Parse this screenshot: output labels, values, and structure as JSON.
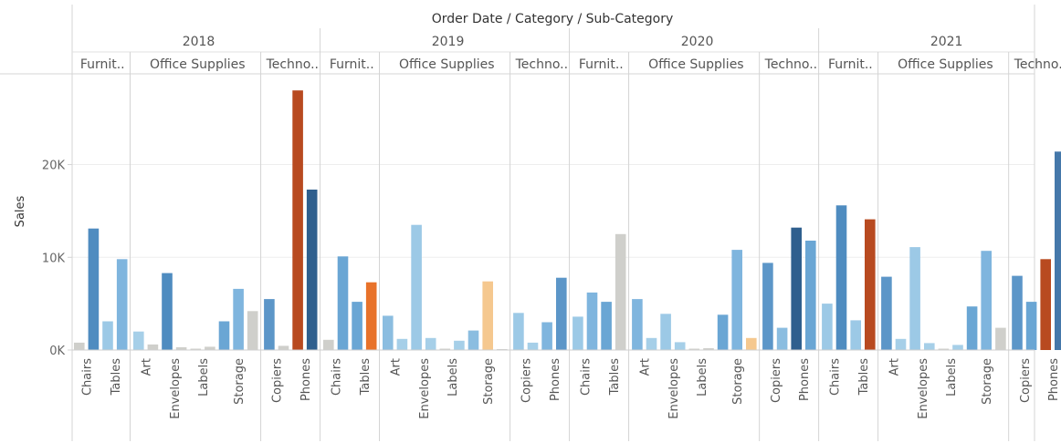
{
  "chart_data": {
    "type": "bar",
    "title": "Order Date / Category / Sub-Category",
    "ylabel": "Sales",
    "ylim": [
      0,
      29000
    ],
    "yticks": [
      0,
      10000,
      20000
    ],
    "ytick_labels": [
      "0K",
      "10K",
      "20K"
    ],
    "grid": "horizontal",
    "years": [
      {
        "label": "2018",
        "groups": [
          {
            "label": "Furnit..",
            "bars": [
              {
                "label": "Chairs",
                "value": 800,
                "color": "#cfcfcb"
              },
              {
                "label": "Chairs",
                "value": 13100,
                "color": "#4f8cc0"
              },
              {
                "label": "Tables",
                "value": 3100,
                "color": "#9cc9e6"
              },
              {
                "label": "Tables",
                "value": 9800,
                "color": "#7fb5de"
              }
            ]
          },
          {
            "label": "Office Supplies",
            "bars": [
              {
                "label": "Art",
                "value": 2000,
                "color": "#a6cfe8"
              },
              {
                "label": "Art",
                "value": 600,
                "color": "#cfcfcb"
              },
              {
                "label": "Envelopes",
                "value": 8300,
                "color": "#4f8cc0"
              },
              {
                "label": "Envelopes",
                "value": 300,
                "color": "#cfcfcb"
              },
              {
                "label": "Labels",
                "value": 150,
                "color": "#cfcfcb"
              },
              {
                "label": "Labels",
                "value": 350,
                "color": "#cfcfcb"
              },
              {
                "label": "Storage",
                "value": 3100,
                "color": "#6aa6d4"
              },
              {
                "label": "Storage",
                "value": 6600,
                "color": "#7fb5de"
              },
              {
                "label": "Storage",
                "value": 4200,
                "color": "#cfcfcb"
              }
            ]
          },
          {
            "label": "Techno..",
            "bars": [
              {
                "label": "Copiers",
                "value": 5500,
                "color": "#5c96c8"
              },
              {
                "label": "Copiers",
                "value": 450,
                "color": "#cfcfcb"
              },
              {
                "label": "Phones",
                "value": 28000,
                "color": "#b84a20"
              },
              {
                "label": "Phones",
                "value": 17300,
                "color": "#2f5f8e"
              }
            ]
          }
        ]
      },
      {
        "label": "2019",
        "groups": [
          {
            "label": "Furnit..",
            "bars": [
              {
                "label": "Chairs",
                "value": 1100,
                "color": "#cfcfcb"
              },
              {
                "label": "Chairs",
                "value": 10100,
                "color": "#6aa6d4"
              },
              {
                "label": "Tables",
                "value": 5200,
                "color": "#6aa6d4"
              },
              {
                "label": "Tables",
                "value": 7300,
                "color": "#e8722a"
              }
            ]
          },
          {
            "label": "Office Supplies",
            "bars": [
              {
                "label": "Art",
                "value": 3700,
                "color": "#8bbde0"
              },
              {
                "label": "Art",
                "value": 1200,
                "color": "#a6cfe8"
              },
              {
                "label": "Envelopes",
                "value": 13500,
                "color": "#9cc9e6"
              },
              {
                "label": "Envelopes",
                "value": 1300,
                "color": "#a6cfe8"
              },
              {
                "label": "Labels",
                "value": 150,
                "color": "#cfcfcb"
              },
              {
                "label": "Labels",
                "value": 1000,
                "color": "#a6cfe8"
              },
              {
                "label": "Storage",
                "value": 2100,
                "color": "#8bbde0"
              },
              {
                "label": "Storage",
                "value": 7400,
                "color": "#f5c88f"
              },
              {
                "label": "Storage",
                "value": 100,
                "color": "#cfcfcb"
              }
            ]
          },
          {
            "label": "Techno..",
            "bars": [
              {
                "label": "Copiers",
                "value": 4000,
                "color": "#9cc9e6"
              },
              {
                "label": "Copiers",
                "value": 800,
                "color": "#a6cfe8"
              },
              {
                "label": "Phones",
                "value": 3000,
                "color": "#7fb5de"
              },
              {
                "label": "Phones",
                "value": 7800,
                "color": "#5c96c8"
              }
            ]
          }
        ]
      },
      {
        "label": "2020",
        "groups": [
          {
            "label": "Furnit..",
            "bars": [
              {
                "label": "Chairs",
                "value": 3600,
                "color": "#9cc9e6"
              },
              {
                "label": "Chairs",
                "value": 6200,
                "color": "#7fb5de"
              },
              {
                "label": "Tables",
                "value": 5200,
                "color": "#6aa6d4"
              },
              {
                "label": "Tables",
                "value": 12500,
                "color": "#cfcfcb"
              }
            ]
          },
          {
            "label": "Office Supplies",
            "bars": [
              {
                "label": "Art",
                "value": 5500,
                "color": "#7fb5de"
              },
              {
                "label": "Art",
                "value": 1300,
                "color": "#a6cfe8"
              },
              {
                "label": "Envelopes",
                "value": 3900,
                "color": "#9cc9e6"
              },
              {
                "label": "Envelopes",
                "value": 850,
                "color": "#a6cfe8"
              },
              {
                "label": "Labels",
                "value": 150,
                "color": "#cfcfcb"
              },
              {
                "label": "Labels",
                "value": 200,
                "color": "#cfcfcb"
              },
              {
                "label": "Storage",
                "value": 3800,
                "color": "#6aa6d4"
              },
              {
                "label": "Storage",
                "value": 10800,
                "color": "#7fb5de"
              },
              {
                "label": "Storage",
                "value": 1300,
                "color": "#f5c88f"
              }
            ]
          },
          {
            "label": "Techno..",
            "bars": [
              {
                "label": "Copiers",
                "value": 9400,
                "color": "#5c96c8"
              },
              {
                "label": "Copiers",
                "value": 2400,
                "color": "#8bbde0"
              },
              {
                "label": "Phones",
                "value": 13200,
                "color": "#2f5f8e"
              },
              {
                "label": "Phones",
                "value": 11800,
                "color": "#6aa6d4"
              }
            ]
          }
        ]
      },
      {
        "label": "2021",
        "groups": [
          {
            "label": "Furnit..",
            "bars": [
              {
                "label": "Chairs",
                "value": 5000,
                "color": "#9cc9e6"
              },
              {
                "label": "Chairs",
                "value": 15600,
                "color": "#4f8cc0"
              },
              {
                "label": "Tables",
                "value": 3200,
                "color": "#9cc9e6"
              },
              {
                "label": "Tables",
                "value": 14100,
                "color": "#b84a20"
              }
            ]
          },
          {
            "label": "Office Supplies",
            "bars": [
              {
                "label": "Art",
                "value": 7900,
                "color": "#5c96c8"
              },
              {
                "label": "Art",
                "value": 1200,
                "color": "#a6cfe8"
              },
              {
                "label": "Envelopes",
                "value": 11100,
                "color": "#9cc9e6"
              },
              {
                "label": "Envelopes",
                "value": 750,
                "color": "#a6cfe8"
              },
              {
                "label": "Labels",
                "value": 150,
                "color": "#cfcfcb"
              },
              {
                "label": "Labels",
                "value": 550,
                "color": "#a6cfe8"
              },
              {
                "label": "Storage",
                "value": 4700,
                "color": "#6aa6d4"
              },
              {
                "label": "Storage",
                "value": 10700,
                "color": "#7fb5de"
              },
              {
                "label": "Storage",
                "value": 2400,
                "color": "#cfcfcb"
              }
            ]
          },
          {
            "label": "Techno..",
            "bars": [
              {
                "label": "Copiers",
                "value": 8000,
                "color": "#5c96c8"
              },
              {
                "label": "Copiers",
                "value": 5200,
                "color": "#6aa6d4"
              },
              {
                "label": "Phones",
                "value": 9800,
                "color": "#b84a20"
              },
              {
                "label": "Phones",
                "value": 21400,
                "color": "#4578aa"
              }
            ]
          }
        ]
      }
    ]
  }
}
